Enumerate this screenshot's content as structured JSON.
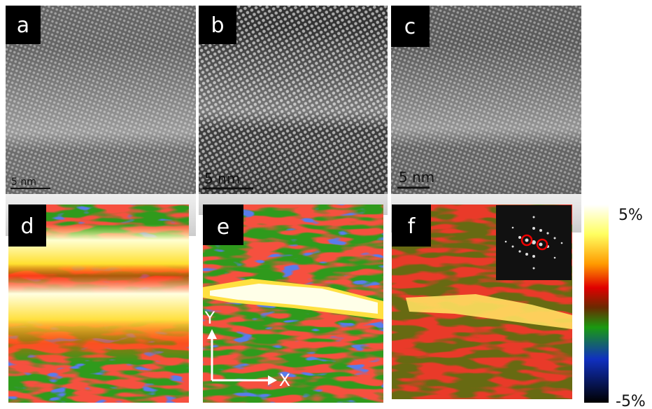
{
  "panels": [
    {
      "label": "a",
      "scale_bar": "5 nm"
    },
    {
      "label": "b",
      "scale_bar": "5 nm"
    },
    {
      "label": "c",
      "scale_bar": "5 nm"
    },
    {
      "label": "d"
    },
    {
      "label": "e",
      "axes": {
        "y": "Y",
        "x": "X"
      }
    },
    {
      "label": "f"
    }
  ],
  "colorbar": {
    "max_label": "5%",
    "min_label": "-5%"
  }
}
